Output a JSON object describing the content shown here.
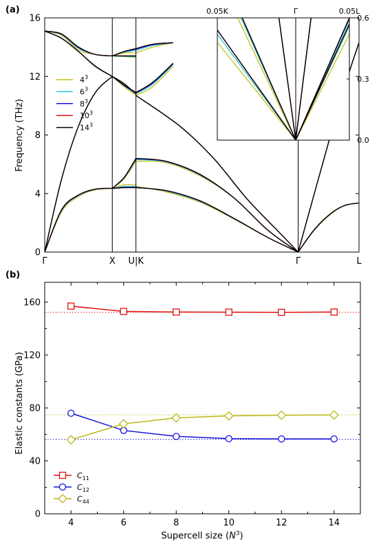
{
  "panel_labels": {
    "a": "(a)",
    "b": "(b)"
  },
  "chart_data": [
    {
      "type": "line",
      "panel": "(a)",
      "title": "",
      "xlabel": "",
      "ylabel": "Frequency (THz)",
      "ylim": [
        0,
        16
      ],
      "yticks": [
        0,
        4,
        8,
        12,
        16
      ],
      "xpath": {
        "labels": [
          "Γ",
          "X",
          "U|K",
          "Γ",
          "L"
        ],
        "positions": [
          0,
          1,
          1.35,
          3.75,
          4.65
        ]
      },
      "grid": false,
      "legend_position": "left",
      "legend": [
        {
          "name": "4³",
          "base": "4",
          "exp": "3",
          "color": "#c9c017"
        },
        {
          "name": "6³",
          "base": "6",
          "exp": "3",
          "color": "#2ec4cf"
        },
        {
          "name": "8³",
          "base": "8",
          "exp": "3",
          "color": "#1010e0"
        },
        {
          "name": "10³",
          "base": "10",
          "exp": "3",
          "color": "#ee1010"
        },
        {
          "name": "14³",
          "base": "14",
          "exp": "3",
          "color": "#000000"
        }
      ],
      "bands": {
        "GX": [
          {
            "nodes": [
              [
                0,
                15.1
              ],
              [
                0.25,
                14.9
              ],
              [
                0.5,
                14.0
              ],
              [
                0.75,
                13.5
              ],
              [
                1,
                13.4
              ]
            ],
            "s4": [
              0,
              -0.1,
              -0.2,
              0,
              0
            ]
          },
          {
            "nodes": [
              [
                0,
                15.1
              ],
              [
                0.25,
                14.6
              ],
              [
                0.5,
                13.7
              ],
              [
                0.75,
                12.7
              ],
              [
                1,
                12.0
              ]
            ],
            "s4": [
              0,
              0,
              0,
              -0.05,
              0
            ]
          },
          {
            "nodes": [
              [
                0,
                0
              ],
              [
                0.25,
                5.0
              ],
              [
                0.5,
                8.6
              ],
              [
                0.75,
                10.9
              ],
              [
                1,
                12.0
              ]
            ],
            "s4": [
              0,
              0,
              0,
              0,
              0
            ]
          },
          {
            "nodes": [
              [
                0,
                0
              ],
              [
                0.25,
                2.9
              ],
              [
                0.5,
                3.9
              ],
              [
                0.75,
                4.3
              ],
              [
                1,
                4.35
              ]
            ],
            "s4": [
              0,
              -0.15,
              -0.1,
              -0.05,
              0
            ]
          }
        ],
        "XU": [
          {
            "nodes": [
              [
                1,
                13.4
              ],
              [
                1.175,
                13.7
              ],
              [
                1.35,
                13.9
              ]
            ],
            "s4": [
              0,
              -0.1,
              -0.3
            ]
          },
          {
            "nodes": [
              [
                1,
                13.4
              ],
              [
                1.175,
                13.4
              ],
              [
                1.35,
                13.4
              ]
            ],
            "s4": [
              0,
              -0.05,
              -0.1
            ]
          },
          {
            "nodes": [
              [
                1,
                12.0
              ],
              [
                1.175,
                11.4
              ],
              [
                1.35,
                10.9
              ]
            ],
            "s4": [
              0,
              -0.1,
              -0.2
            ]
          },
          {
            "nodes": [
              [
                1,
                12.0
              ],
              [
                1.175,
                11.5
              ],
              [
                1.35,
                10.8
              ]
            ],
            "s4": [
              0,
              0,
              0
            ]
          },
          {
            "nodes": [
              [
                1,
                4.35
              ],
              [
                1.175,
                5.1
              ],
              [
                1.35,
                6.4
              ]
            ],
            "s4": [
              0,
              -0.1,
              -0.2
            ]
          },
          {
            "nodes": [
              [
                1,
                4.35
              ],
              [
                1.175,
                4.4
              ],
              [
                1.35,
                4.4
              ]
            ],
            "s4": [
              0,
              0.2,
              0.2
            ]
          }
        ],
        "KG": [
          {
            "nodes": [
              [
                1.35,
                13.9
              ],
              [
                1.6,
                14.2
              ],
              [
                1.9,
                14.3
              ]
            ],
            "s4": [
              -0.3,
              -0.2,
              0
            ]
          },
          {
            "nodes": [
              [
                1.35,
                10.9
              ],
              [
                1.6,
                11.6
              ],
              [
                1.9,
                12.9
              ]
            ],
            "s4": [
              -0.2,
              -0.3,
              -0.2
            ]
          },
          {
            "nodes": [
              [
                1.35,
                10.7
              ],
              [
                2.0,
                8.6
              ],
              [
                2.5,
                6.4
              ],
              [
                3.0,
                3.6
              ],
              [
                3.5,
                1.2
              ],
              [
                3.75,
                0
              ]
            ],
            "s4": [
              0,
              0,
              0,
              0,
              0,
              0
            ]
          },
          {
            "nodes": [
              [
                1.35,
                6.4
              ],
              [
                1.8,
                6.2
              ],
              [
                2.3,
                5.3
              ],
              [
                2.8,
                3.7
              ],
              [
                3.3,
                1.5
              ],
              [
                3.75,
                0
              ]
            ],
            "s4": [
              -0.2,
              -0.1,
              -0.1,
              0,
              0,
              0
            ]
          },
          {
            "nodes": [
              [
                1.35,
                4.4
              ],
              [
                1.8,
                4.2
              ],
              [
                2.3,
                3.5
              ],
              [
                2.8,
                2.3
              ],
              [
                3.3,
                1.0
              ],
              [
                3.75,
                0
              ]
            ],
            "s4": [
              0.1,
              -0.1,
              -0.1,
              -0.05,
              0,
              0
            ]
          }
        ],
        "GL": [
          {
            "nodes": [
              [
                3.75,
                0
              ],
              [
                4.2,
                7.5
              ],
              [
                4.45,
                11.5
              ],
              [
                4.65,
                14.3
              ]
            ],
            "s4": [
              0,
              0,
              0,
              0
            ]
          },
          {
            "nodes": [
              [
                3.75,
                0
              ],
              [
                4.0,
                1.6
              ],
              [
                4.25,
                2.7
              ],
              [
                4.45,
                3.2
              ],
              [
                4.65,
                3.35
              ]
            ],
            "s4": [
              0,
              -0.05,
              -0.05,
              0,
              0
            ]
          }
        ]
      },
      "inset": {
        "xtick_labels": [
          "0.05K",
          "Γ",
          "0.05L"
        ],
        "yticks": [
          0.0,
          0.3,
          0.6
        ],
        "ylim": [
          0,
          0.6
        ],
        "left_slopes": {
          "s4": [
            0.48,
            0.81,
            2.8
          ],
          "s6": [
            0.52,
            0.86,
            2.8
          ],
          "s8": [
            0.54,
            0.88,
            2.8
          ],
          "s10": [
            0.54,
            0.88,
            2.8
          ],
          "s14": [
            0.54,
            0.88,
            2.8
          ]
        },
        "right_slopes": {
          "s4": [
            0.52,
            0.56,
            2.1
          ],
          "s6": [
            0.56,
            0.59,
            2.1
          ],
          "s8": [
            0.57,
            0.6,
            2.1
          ],
          "s10": [
            0.57,
            0.6,
            2.1
          ],
          "s14": [
            0.57,
            0.6,
            2.1
          ]
        }
      }
    },
    {
      "type": "line",
      "panel": "(b)",
      "title": "",
      "xlabel": "Supercell size (N³)",
      "xlabel_main": "Supercell size (",
      "xlabel_var": "N",
      "xlabel_exp": "3",
      "xlabel_close": ")",
      "ylabel": "Elastic constants (GPa)",
      "xlim": [
        3,
        15
      ],
      "ylim": [
        0,
        175
      ],
      "xticks": [
        4,
        6,
        8,
        10,
        12,
        14
      ],
      "yticks": [
        0,
        40,
        80,
        120,
        160
      ],
      "x": [
        4,
        6,
        8,
        10,
        12,
        14
      ],
      "grid": false,
      "legend_position": "bottom-left",
      "series": [
        {
          "name": "C11",
          "sym": "C",
          "sub": "11",
          "marker": "square",
          "color": "#dd1111",
          "values": [
            157,
            153,
            152.5,
            152.4,
            152.3,
            152.5
          ],
          "reference": 152.3
        },
        {
          "name": "C12",
          "sym": "C",
          "sub": "12",
          "marker": "circle",
          "color": "#1111dd",
          "values": [
            76,
            63,
            58.5,
            56.8,
            56.6,
            56.6
          ],
          "reference": 56.2
        },
        {
          "name": "C44",
          "sym": "C",
          "sub": "44",
          "marker": "diamond",
          "color": "#b8b817",
          "values": [
            56,
            68,
            72.5,
            74,
            74.5,
            74.7
          ],
          "reference": 74.8
        }
      ]
    }
  ]
}
